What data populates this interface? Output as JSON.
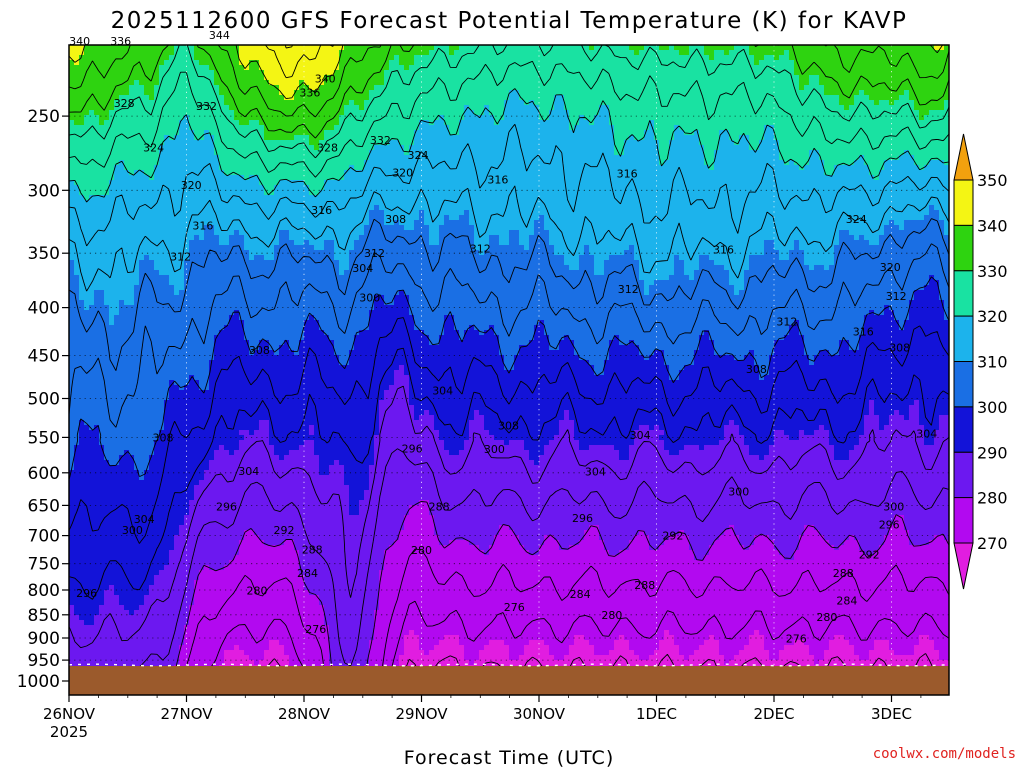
{
  "chart_data": {
    "type": "heatmap",
    "title": "2025112600 GFS Forecast Potential Temperature (K) for KAVP",
    "xlabel": "Forecast Time (UTC)",
    "ylabel": "",
    "credit": "coolwx.com/models",
    "y_axis": {
      "scale": "log-pressure",
      "direction": "reversed (1000 at bottom)",
      "ticks": [
        250,
        300,
        350,
        400,
        450,
        500,
        550,
        600,
        650,
        700,
        750,
        800,
        850,
        900,
        950,
        1000
      ],
      "tick_labels": [
        "250",
        "300",
        "350",
        "400",
        "450",
        "500",
        "550",
        "600",
        "650",
        "700",
        "750",
        "800",
        "850",
        "900",
        "950",
        "1000"
      ]
    },
    "x_axis": {
      "ticks": [
        "26NOV",
        "27NOV",
        "28NOV",
        "29NOV",
        "30NOV",
        "1DEC",
        "2DEC",
        "3DEC"
      ],
      "sub_label": "2025",
      "range_days": [
        0,
        7.5
      ]
    },
    "grid": "dotted",
    "colorbar": {
      "levels": [
        270,
        280,
        290,
        300,
        310,
        320,
        330,
        340,
        350
      ],
      "labels": [
        "270",
        "280",
        "290",
        "300",
        "310",
        "320",
        "330",
        "340",
        "350"
      ],
      "colors": [
        "#e11de0",
        "#b209f0",
        "#6c18f0",
        "#1313d8",
        "#1a6fe4",
        "#1cb3ec",
        "#19e2a2",
        "#2ed310",
        "#f4f514",
        "#f2a10e"
      ],
      "extend": "both"
    },
    "contour_labels": [
      {
        "v": "340",
        "t": 0.09,
        "p": 208
      },
      {
        "v": "336",
        "t": 0.44,
        "p": 208
      },
      {
        "v": "344",
        "t": 1.28,
        "p": 205
      },
      {
        "v": "328",
        "t": 0.47,
        "p": 242
      },
      {
        "v": "332",
        "t": 1.17,
        "p": 244
      },
      {
        "v": "340",
        "t": 2.18,
        "p": 228
      },
      {
        "v": "336",
        "t": 2.05,
        "p": 236
      },
      {
        "v": "324",
        "t": 0.72,
        "p": 270
      },
      {
        "v": "328",
        "t": 2.2,
        "p": 270
      },
      {
        "v": "332",
        "t": 2.65,
        "p": 265
      },
      {
        "v": "324",
        "t": 2.97,
        "p": 275
      },
      {
        "v": "320",
        "t": 2.84,
        "p": 287
      },
      {
        "v": "320",
        "t": 0.03,
        "p": 296
      },
      {
        "v": "320",
        "t": 1.04,
        "p": 296
      },
      {
        "v": "316",
        "t": 3.65,
        "p": 292
      },
      {
        "v": "316",
        "t": 4.75,
        "p": 288
      },
      {
        "v": "308",
        "t": 2.78,
        "p": 322
      },
      {
        "v": "316",
        "t": 1.14,
        "p": 327
      },
      {
        "v": "316",
        "t": 2.15,
        "p": 315
      },
      {
        "v": "312",
        "t": 0.95,
        "p": 353
      },
      {
        "v": "312",
        "t": 3.5,
        "p": 346
      },
      {
        "v": "312",
        "t": 2.6,
        "p": 350
      },
      {
        "v": "304",
        "t": 2.5,
        "p": 363
      },
      {
        "v": "316",
        "t": 5.57,
        "p": 347
      },
      {
        "v": "324",
        "t": 6.7,
        "p": 322
      },
      {
        "v": "320",
        "t": 6.99,
        "p": 362
      },
      {
        "v": "312",
        "t": 4.76,
        "p": 382
      },
      {
        "v": "312",
        "t": 7.04,
        "p": 389
      },
      {
        "v": "300",
        "t": 2.56,
        "p": 390
      },
      {
        "v": "312",
        "t": 6.11,
        "p": 414
      },
      {
        "v": "316",
        "t": 6.76,
        "p": 424
      },
      {
        "v": "308",
        "t": 1.62,
        "p": 444
      },
      {
        "v": "308",
        "t": 7.07,
        "p": 441
      },
      {
        "v": "308",
        "t": 5.85,
        "p": 465
      },
      {
        "v": "304",
        "t": 3.18,
        "p": 490
      },
      {
        "v": "308",
        "t": 3.74,
        "p": 534
      },
      {
        "v": "304",
        "t": 4.86,
        "p": 547
      },
      {
        "v": "308",
        "t": 0.8,
        "p": 550
      },
      {
        "v": "304",
        "t": 7.3,
        "p": 545
      },
      {
        "v": "296",
        "t": 2.92,
        "p": 565
      },
      {
        "v": "300",
        "t": 3.62,
        "p": 566
      },
      {
        "v": "304",
        "t": 1.53,
        "p": 597
      },
      {
        "v": "304",
        "t": 4.48,
        "p": 598
      },
      {
        "v": "300",
        "t": 5.7,
        "p": 628
      },
      {
        "v": "288",
        "t": 3.15,
        "p": 652
      },
      {
        "v": "300",
        "t": 7.02,
        "p": 652
      },
      {
        "v": "296",
        "t": 1.34,
        "p": 652
      },
      {
        "v": "304",
        "t": 0.64,
        "p": 672
      },
      {
        "v": "296",
        "t": 4.37,
        "p": 670
      },
      {
        "v": "296",
        "t": 6.98,
        "p": 681
      },
      {
        "v": "300",
        "t": 0.54,
        "p": 690
      },
      {
        "v": "292",
        "t": 1.83,
        "p": 690
      },
      {
        "v": "292",
        "t": 5.14,
        "p": 700
      },
      {
        "v": "288",
        "t": 2.07,
        "p": 724
      },
      {
        "v": "280",
        "t": 3.0,
        "p": 725
      },
      {
        "v": "292",
        "t": 6.81,
        "p": 733
      },
      {
        "v": "284",
        "t": 2.03,
        "p": 767
      },
      {
        "v": "288",
        "t": 6.59,
        "p": 767
      },
      {
        "v": "288",
        "t": 4.9,
        "p": 790
      },
      {
        "v": "296",
        "t": 0.15,
        "p": 806
      },
      {
        "v": "280",
        "t": 1.6,
        "p": 801
      },
      {
        "v": "284",
        "t": 4.35,
        "p": 808
      },
      {
        "v": "284",
        "t": 6.62,
        "p": 821
      },
      {
        "v": "276",
        "t": 3.79,
        "p": 834
      },
      {
        "v": "280",
        "t": 4.62,
        "p": 851
      },
      {
        "v": "280",
        "t": 6.45,
        "p": 855
      },
      {
        "v": "276",
        "t": 2.1,
        "p": 880
      },
      {
        "v": "276",
        "t": 6.19,
        "p": 901
      }
    ]
  }
}
